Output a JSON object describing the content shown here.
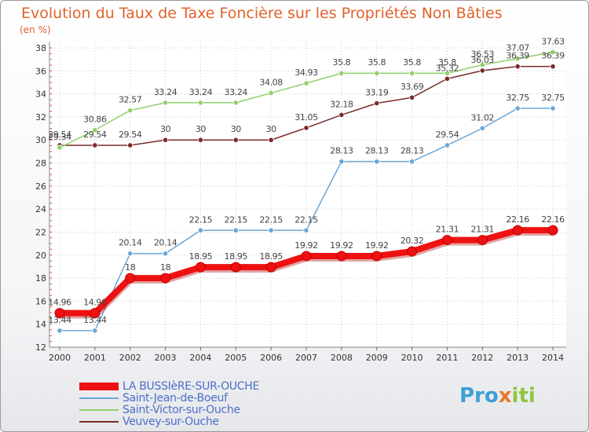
{
  "title": "Evolution du Taux de Taxe Foncière sur les Propriétés Non Bâties",
  "unit_label": "(en %)",
  "logo": {
    "prefix": "Pro",
    "mark": "x",
    "suffix": "iti",
    "colors": {
      "prefix": "#3d9fd6",
      "mark": "#e8782a",
      "suffix": "#8cc63f"
    }
  },
  "chart_data": {
    "type": "line",
    "title": "Evolution du Taux de Taxe Foncière sur les Propriétés Non Bâties",
    "ylabel": "(en %)",
    "xlabel": "",
    "x": [
      "2000",
      "2001",
      "2002",
      "2003",
      "2004",
      "2005",
      "2006",
      "2007",
      "2008",
      "2009",
      "2010",
      "2011",
      "2012",
      "2013",
      "2014"
    ],
    "ylim": [
      12,
      38
    ],
    "yticks": [
      12,
      14,
      16,
      18,
      20,
      22,
      24,
      26,
      28,
      30,
      32,
      34,
      36,
      38
    ],
    "grid": true,
    "legend_position": "bottom-left",
    "series": [
      {
        "name": "LA BUSSIèRE-SUR-OUCHE",
        "color": "#ee1111",
        "bold": true,
        "values": [
          14.96,
          14.96,
          18,
          18,
          18.95,
          18.95,
          18.95,
          19.92,
          19.92,
          19.92,
          20.32,
          21.31,
          21.31,
          22.16,
          22.16
        ]
      },
      {
        "name": "Saint-Jean-de-Boeuf",
        "color": "#6aa7d8",
        "values": [
          13.44,
          13.44,
          20.14,
          20.14,
          22.15,
          22.15,
          22.15,
          22.15,
          28.13,
          28.13,
          28.13,
          29.54,
          31.02,
          32.75,
          32.75
        ]
      },
      {
        "name": "Saint-Victor-sur-Ouche",
        "color": "#8fd16a",
        "values": [
          29.34,
          30.86,
          32.57,
          33.24,
          33.24,
          33.24,
          34.08,
          34.93,
          35.8,
          35.8,
          35.8,
          35.8,
          36.53,
          37.07,
          37.63
        ]
      },
      {
        "name": "Veuvey-sur-Ouche",
        "color": "#7a2a2a",
        "values": [
          29.54,
          29.54,
          29.54,
          30,
          30,
          30,
          30,
          31.05,
          32.18,
          33.19,
          33.69,
          35.32,
          36.03,
          36.39,
          36.39
        ]
      }
    ],
    "labels": [
      [
        "14.96",
        "14.96",
        "18",
        "18",
        "18.95",
        "18.95",
        "18.95",
        "19.92",
        "19.92",
        "19.92",
        "20.32",
        "21.31",
        "21.31",
        "22.16",
        "22.16"
      ],
      [
        "13.44",
        "13.44",
        "20.14",
        "20.14",
        "22.15",
        "22.15",
        "22.15",
        "22.15",
        "28.13",
        "28.13",
        "28.13",
        "29.54",
        "31.02",
        "32.75",
        "32.75"
      ],
      [
        "29.34",
        "30.86",
        "32.57",
        "33.24",
        "33.24",
        "33.24",
        "34.08",
        "34.93",
        "35.8",
        "35.8",
        "35.8",
        "35.8",
        "36.53",
        "37.07",
        "37.63"
      ],
      [
        "29.54",
        "29.54",
        "29.54",
        "30",
        "30",
        "30",
        "30",
        "31.05",
        "32.18",
        "33.19",
        "33.69",
        "35.32",
        "36.03",
        "36.39",
        "36.39"
      ]
    ]
  }
}
